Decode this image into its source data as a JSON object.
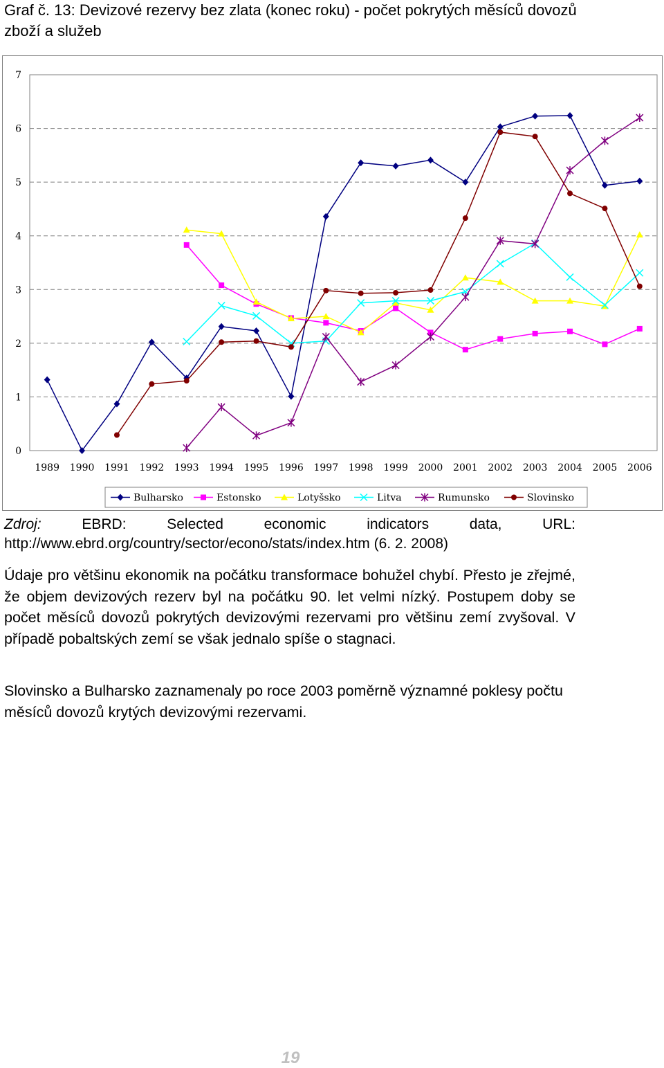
{
  "caption": {
    "text": "Graf č. 13: Devizové rezervy bez zlata (konec roku) - počet pokrytých měsíců dovozů zboží a služeb"
  },
  "chart_data": {
    "type": "line",
    "title": "",
    "xlabel": "",
    "ylabel": "",
    "ylim": [
      0,
      7
    ],
    "yticks": [
      "0",
      "1",
      "2",
      "3",
      "4",
      "5",
      "6",
      "7"
    ],
    "categories": [
      "1989",
      "1990",
      "1991",
      "1992",
      "1993",
      "1994",
      "1995",
      "1996",
      "1997",
      "1998",
      "1999",
      "2000",
      "2001",
      "2002",
      "2003",
      "2004",
      "2005",
      "2006"
    ],
    "grid": "horizontal dashed",
    "legend_position": "bottom",
    "series": [
      {
        "name": "Bulharsko",
        "color": "#000080",
        "marker": "diamond",
        "values": [
          1.32,
          0.0,
          0.87,
          2.02,
          1.35,
          2.31,
          2.23,
          1.01,
          4.36,
          5.36,
          5.3,
          5.41,
          5.0,
          6.03,
          6.23,
          6.24,
          4.94,
          5.02
        ]
      },
      {
        "name": "Estonsko",
        "color": "#ff00ff",
        "marker": "square",
        "values": [
          null,
          null,
          null,
          null,
          3.83,
          3.08,
          2.73,
          2.47,
          2.38,
          2.23,
          2.65,
          2.2,
          1.88,
          2.08,
          2.18,
          2.22,
          1.98,
          2.27
        ]
      },
      {
        "name": "Lotyšsko",
        "color": "#ffff00",
        "marker": "triangle",
        "values": [
          null,
          null,
          null,
          null,
          4.11,
          4.04,
          2.77,
          2.46,
          2.5,
          2.2,
          2.75,
          2.62,
          3.22,
          3.14,
          2.79,
          2.79,
          2.69,
          4.02
        ]
      },
      {
        "name": "Litva",
        "color": "#00ffff",
        "marker": "x",
        "values": [
          null,
          null,
          null,
          null,
          2.03,
          2.7,
          2.51,
          2.0,
          2.04,
          2.75,
          2.79,
          2.79,
          2.96,
          3.48,
          3.86,
          3.23,
          2.71,
          3.31
        ]
      },
      {
        "name": "Rumunsko",
        "color": "#800080",
        "marker": "star",
        "values": [
          null,
          null,
          null,
          null,
          0.05,
          0.81,
          0.28,
          0.52,
          2.12,
          1.28,
          1.59,
          2.12,
          2.86,
          3.91,
          3.85,
          5.22,
          5.77,
          6.2
        ]
      },
      {
        "name": "Slovinsko",
        "color": "#800000",
        "marker": "circle",
        "values": [
          null,
          null,
          0.29,
          1.24,
          1.3,
          2.02,
          2.04,
          1.93,
          2.98,
          2.93,
          2.94,
          2.99,
          4.33,
          5.93,
          5.85,
          4.79,
          4.51,
          3.06
        ]
      }
    ]
  },
  "source": {
    "label": "Zdroj:",
    "words": [
      "EBRD:",
      "Selected",
      "economic",
      "indicators",
      "data,",
      "URL:"
    ],
    "line2": "http://www.ebrd.org/country/sector/econo/stats/index.htm (6. 2. 2008)"
  },
  "paragraphs": {
    "p1": "Údaje pro většinu ekonomik na počátku transformace bohužel chybí. Přesto je zřejmé, že objem devizových rezerv byl na počátku 90. let velmi nízký. Postupem doby se počet měsíců dovozů pokrytých devizovými rezervami pro většinu zemí zvyšoval. V případě pobaltských zemí se však jednalo spíše o stagnaci.",
    "p2": "Slovinsko a Bulharsko zaznamenaly po roce 2003 poměrně významné poklesy počtu měsíců dovozů krytých devizovými rezervami."
  },
  "page": {
    "number": "19"
  }
}
